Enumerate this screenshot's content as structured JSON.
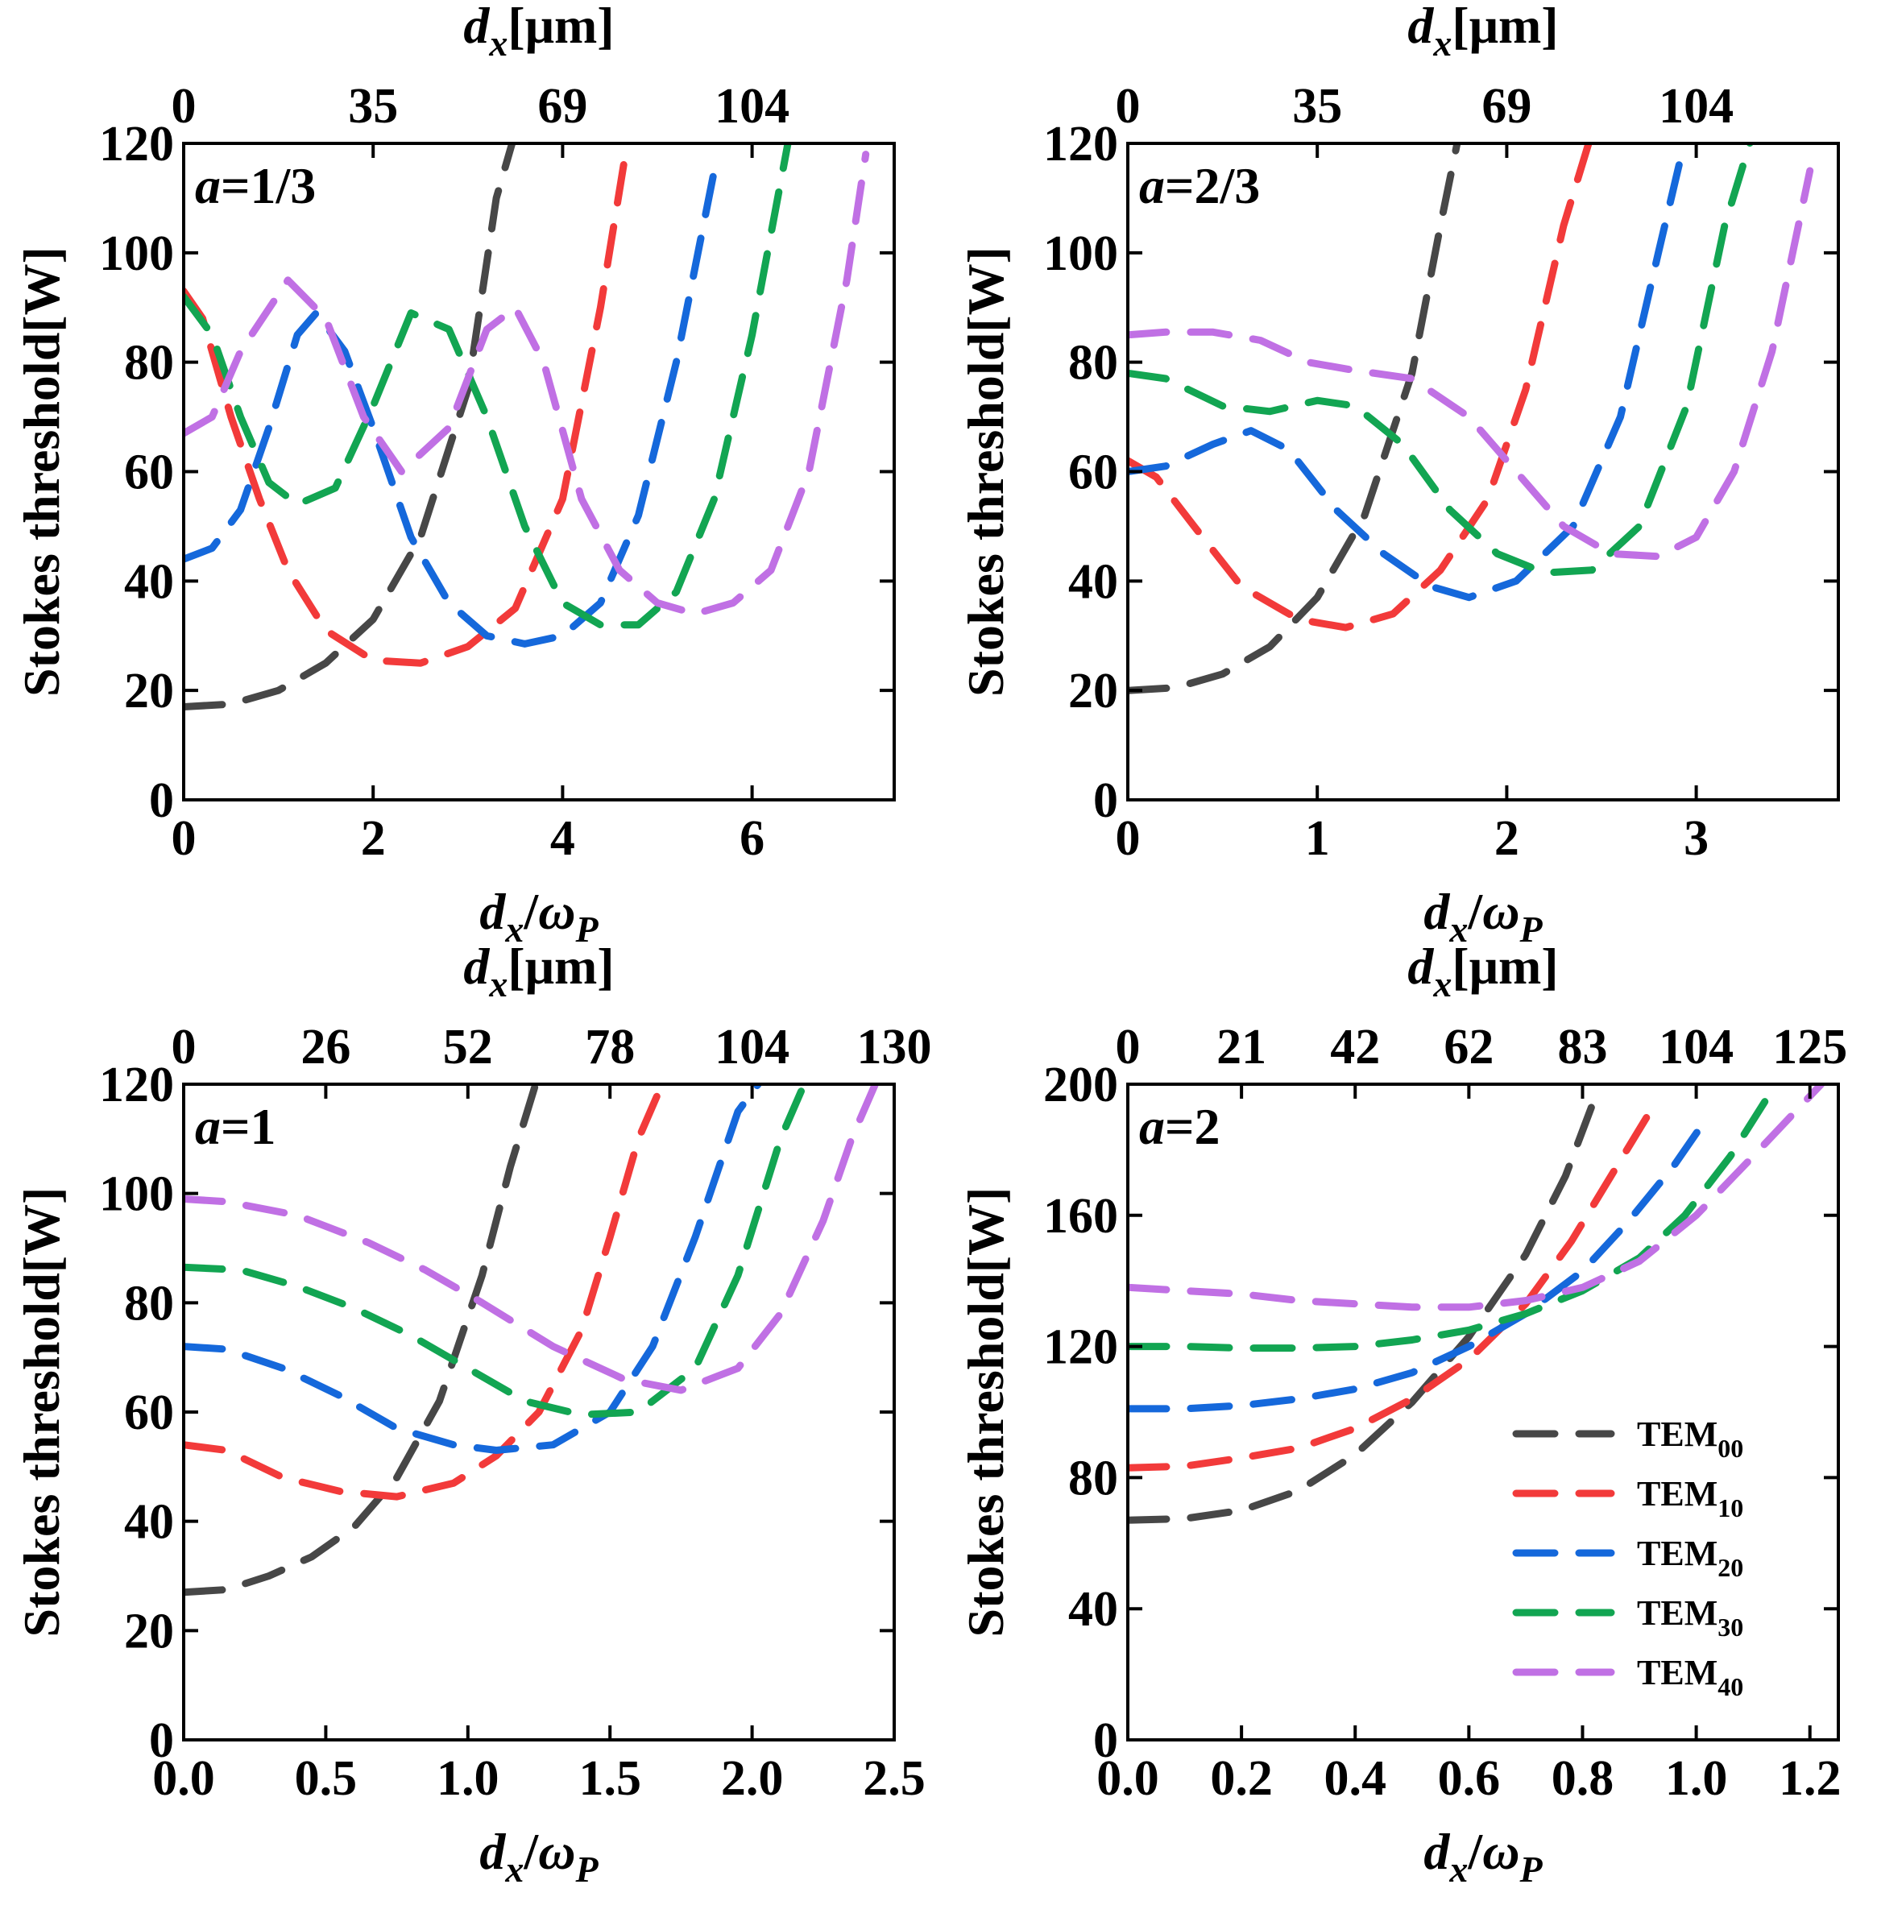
{
  "colors": {
    "TEM00": "#474747",
    "TEM10": "#f23a3a",
    "TEM20": "#1568db",
    "TEM30": "#12a552",
    "TEM40": "#c070e4"
  },
  "legend": {
    "entries": [
      {
        "series": "TEM00",
        "base": "TEM",
        "sub": "00"
      },
      {
        "series": "TEM10",
        "base": "TEM",
        "sub": "10"
      },
      {
        "series": "TEM20",
        "base": "TEM",
        "sub": "20"
      },
      {
        "series": "TEM30",
        "base": "TEM",
        "sub": "30"
      },
      {
        "series": "TEM40",
        "base": "TEM",
        "sub": "40"
      }
    ]
  },
  "chart_data": [
    {
      "type": "line",
      "panel_label": {
        "prefix": "a",
        "value": "=1/3"
      },
      "ylabel": "Stokes threshold[W]",
      "xlabel": {
        "main": "d",
        "sub": "x",
        "slash": "/",
        "omega": "ω",
        "omega_sub": "P"
      },
      "top_xlabel": {
        "main": "d",
        "sub": "x",
        "rest": "[μm]"
      },
      "xlim": [
        0,
        7.5
      ],
      "ylim": [
        0,
        120
      ],
      "xticks": [
        0,
        2,
        4,
        6
      ],
      "xtick_labels": [
        "0",
        "2",
        "4",
        "6"
      ],
      "yticks": [
        0,
        20,
        40,
        60,
        80,
        100,
        120
      ],
      "ytick_labels": [
        "0",
        "20",
        "40",
        "60",
        "80",
        "100",
        "120"
      ],
      "top_ticks": [
        0,
        2,
        4,
        6
      ],
      "top_tick_labels": [
        "0",
        "35",
        "69",
        "104"
      ],
      "series": [
        {
          "key": "TEM00",
          "x": [
            0,
            0.5,
            1.0,
            1.5,
            2.0,
            2.5,
            3.0,
            3.3,
            3.5
          ],
          "y": [
            17,
            17.5,
            20,
            25,
            33,
            48,
            75,
            110,
            122
          ]
        },
        {
          "key": "TEM10",
          "x": [
            0,
            0.2,
            0.5,
            0.8,
            1.1,
            1.5,
            2.0,
            2.5,
            3.0,
            3.5,
            4.0,
            4.4,
            4.7
          ],
          "y": [
            93,
            88,
            70,
            55,
            42,
            31,
            25.5,
            25,
            28,
            35,
            55,
            90,
            122
          ]
        },
        {
          "key": "TEM20",
          "x": [
            0,
            0.3,
            0.6,
            0.9,
            1.2,
            1.4,
            1.7,
            2.0,
            2.4,
            2.8,
            3.2,
            3.6,
            4.0,
            4.4,
            4.8,
            5.2,
            5.6
          ],
          "y": [
            44,
            46,
            53,
            68,
            85,
            89,
            82,
            68,
            48,
            36,
            30,
            28.5,
            30,
            36,
            52,
            80,
            115
          ]
        },
        {
          "key": "TEM30",
          "x": [
            0,
            0.3,
            0.6,
            0.9,
            1.2,
            1.6,
            2.0,
            2.4,
            2.8,
            3.2,
            3.6,
            4.0,
            4.4,
            4.8,
            5.2,
            5.6,
            6.0,
            6.4
          ],
          "y": [
            92,
            85,
            70,
            58,
            54,
            57,
            72,
            89,
            86,
            70,
            50,
            36,
            32,
            32,
            38,
            55,
            85,
            122
          ]
        },
        {
          "key": "TEM40",
          "x": [
            0,
            0.3,
            0.6,
            1.1,
            1.5,
            1.9,
            2.3,
            2.8,
            3.2,
            3.5,
            3.8,
            4.2,
            4.6,
            5.0,
            5.4,
            5.8,
            6.2,
            6.6,
            7.0,
            7.2
          ],
          "y": [
            67,
            70,
            82,
            95,
            88,
            70,
            60,
            68,
            86,
            90,
            80,
            55,
            42,
            36,
            34,
            36,
            42,
            60,
            95,
            118
          ]
        }
      ]
    },
    {
      "type": "line",
      "panel_label": {
        "prefix": "a",
        "value": "=2/3"
      },
      "ylabel": "Stokes threshold[W]",
      "xlabel": {
        "main": "d",
        "sub": "x",
        "slash": "/",
        "omega": "ω",
        "omega_sub": "P"
      },
      "top_xlabel": {
        "main": "d",
        "sub": "x",
        "rest": "[μm]"
      },
      "xlim": [
        0,
        3.75
      ],
      "ylim": [
        0,
        120
      ],
      "xticks": [
        0,
        1,
        2,
        3
      ],
      "xtick_labels": [
        "0",
        "1",
        "2",
        "3"
      ],
      "yticks": [
        0,
        20,
        40,
        60,
        80,
        100,
        120
      ],
      "ytick_labels": [
        "0",
        "20",
        "40",
        "60",
        "80",
        "100",
        "120"
      ],
      "top_ticks": [
        0,
        1,
        2,
        3
      ],
      "top_tick_labels": [
        "0",
        "35",
        "69",
        "104"
      ],
      "series": [
        {
          "key": "TEM00",
          "x": [
            0,
            0.25,
            0.5,
            0.75,
            1.0,
            1.25,
            1.5,
            1.65,
            1.75
          ],
          "y": [
            20,
            20.5,
            23,
            28,
            37,
            52,
            78,
            105,
            122
          ]
        },
        {
          "key": "TEM10",
          "x": [
            0,
            0.15,
            0.35,
            0.6,
            0.9,
            1.15,
            1.4,
            1.65,
            1.9,
            2.1,
            2.3,
            2.45
          ],
          "y": [
            62,
            59,
            50,
            39,
            33,
            31.5,
            34,
            42,
            55,
            75,
            105,
            122
          ]
        },
        {
          "key": "TEM20",
          "x": [
            0,
            0.2,
            0.45,
            0.65,
            0.85,
            1.1,
            1.35,
            1.6,
            1.8,
            2.05,
            2.35,
            2.6,
            2.8,
            2.95
          ],
          "y": [
            60,
            61,
            65,
            67.5,
            64,
            53,
            45,
            39,
            37,
            40,
            50,
            70,
            100,
            122
          ]
        },
        {
          "key": "TEM30",
          "x": [
            0,
            0.2,
            0.5,
            0.75,
            1.0,
            1.2,
            1.45,
            1.7,
            1.95,
            2.2,
            2.45,
            2.7,
            2.95,
            3.15,
            3.3
          ],
          "y": [
            78,
            77,
            72,
            71,
            73,
            72,
            65,
            53,
            45,
            41.5,
            42,
            50,
            72,
            105,
            122
          ]
        },
        {
          "key": "TEM40",
          "x": [
            0,
            0.2,
            0.45,
            0.7,
            0.95,
            1.2,
            1.5,
            1.8,
            2.05,
            2.3,
            2.55,
            2.8,
            3.0,
            3.2,
            3.4,
            3.6
          ],
          "y": [
            85,
            85.5,
            85.5,
            84,
            80,
            78.5,
            77,
            70,
            60,
            50,
            45,
            44.5,
            48,
            60,
            82,
            115
          ]
        }
      ]
    },
    {
      "type": "line",
      "panel_label": {
        "prefix": "a",
        "value": "=1"
      },
      "ylabel": "Stokes threshold[W]",
      "xlabel": {
        "main": "d",
        "sub": "x",
        "slash": "/",
        "omega": "ω",
        "omega_sub": "P"
      },
      "top_xlabel": {
        "main": "d",
        "sub": "x",
        "rest": "[μm]"
      },
      "xlim": [
        0,
        2.5
      ],
      "ylim": [
        0,
        120
      ],
      "xticks": [
        0,
        0.5,
        1.0,
        1.5,
        2.0,
        2.5
      ],
      "xtick_labels": [
        "0.0",
        "0.5",
        "1.0",
        "1.5",
        "2.0",
        "2.5"
      ],
      "yticks": [
        0,
        20,
        40,
        60,
        80,
        100,
        120
      ],
      "ytick_labels": [
        "0",
        "20",
        "40",
        "60",
        "80",
        "100",
        "120"
      ],
      "top_ticks": [
        0,
        0.5,
        1.0,
        1.5,
        2.0,
        2.5
      ],
      "top_tick_labels": [
        "0",
        "26",
        "52",
        "78",
        "104",
        "130"
      ],
      "series": [
        {
          "key": "TEM00",
          "x": [
            0,
            0.15,
            0.3,
            0.45,
            0.6,
            0.75,
            0.9,
            1.05,
            1.15,
            1.25
          ],
          "y": [
            27,
            27.5,
            30,
            33.5,
            39,
            48,
            62,
            85,
            105,
            122
          ]
        },
        {
          "key": "TEM10",
          "x": [
            0,
            0.15,
            0.35,
            0.55,
            0.75,
            0.95,
            1.1,
            1.25,
            1.4,
            1.5,
            1.6,
            1.7
          ],
          "y": [
            54,
            53,
            48,
            45.5,
            44.5,
            47,
            52,
            60,
            75,
            92,
            110,
            122
          ]
        },
        {
          "key": "TEM20",
          "x": [
            0,
            0.15,
            0.35,
            0.55,
            0.75,
            0.95,
            1.1,
            1.3,
            1.5,
            1.65,
            1.8,
            1.95,
            2.05
          ],
          "y": [
            72,
            71.5,
            68,
            63,
            57,
            54,
            53,
            54,
            60,
            72,
            92,
            115,
            122
          ]
        },
        {
          "key": "TEM30",
          "x": [
            0,
            0.2,
            0.4,
            0.6,
            0.8,
            1.0,
            1.2,
            1.4,
            1.6,
            1.8,
            1.95,
            2.1,
            2.2
          ],
          "y": [
            86.5,
            86,
            83,
            79,
            74,
            68,
            62,
            59.5,
            60,
            68,
            85,
            110,
            122
          ]
        },
        {
          "key": "TEM40",
          "x": [
            0,
            0.15,
            0.4,
            0.65,
            0.85,
            1.05,
            1.3,
            1.55,
            1.75,
            1.95,
            2.1,
            2.25,
            2.35,
            2.45
          ],
          "y": [
            99,
            98.5,
            96,
            91,
            86,
            80,
            72,
            66,
            64,
            68,
            78,
            95,
            110,
            122
          ]
        }
      ]
    },
    {
      "type": "line",
      "panel_label": {
        "prefix": "a",
        "value": "=2"
      },
      "ylabel": "Stokes threshold[W]",
      "xlabel": {
        "main": "d",
        "sub": "x",
        "slash": "/",
        "omega": "ω",
        "omega_sub": "P"
      },
      "top_xlabel": {
        "main": "d",
        "sub": "x",
        "rest": "[μm]"
      },
      "xlim": [
        0,
        1.25
      ],
      "ylim": [
        0,
        200
      ],
      "xticks": [
        0,
        0.2,
        0.4,
        0.6,
        0.8,
        1.0,
        1.2
      ],
      "xtick_labels": [
        "0.0",
        "0.2",
        "0.4",
        "0.6",
        "0.8",
        "1.0",
        "1.2"
      ],
      "yticks": [
        0,
        40,
        80,
        120,
        160,
        200
      ],
      "ytick_labels": [
        "0",
        "40",
        "80",
        "120",
        "160",
        "200"
      ],
      "top_ticks": [
        0,
        0.2,
        0.4,
        0.6,
        0.8,
        1.0,
        1.2
      ],
      "top_tick_labels": [
        "0",
        "21",
        "42",
        "62",
        "83",
        "104",
        "125"
      ],
      "series": [
        {
          "key": "TEM00",
          "x": [
            0,
            0.1,
            0.2,
            0.3,
            0.4,
            0.5,
            0.6,
            0.7,
            0.77,
            0.82
          ],
          "y": [
            67,
            67.5,
            70,
            76,
            87,
            103,
            123,
            148,
            172,
            195
          ]
        },
        {
          "key": "TEM10",
          "x": [
            0,
            0.1,
            0.2,
            0.3,
            0.4,
            0.5,
            0.6,
            0.7,
            0.78,
            0.85,
            0.92
          ],
          "y": [
            83,
            83.5,
            86,
            89,
            95,
            104,
            116,
            133,
            152,
            172,
            192
          ]
        },
        {
          "key": "TEM20",
          "x": [
            0,
            0.1,
            0.2,
            0.3,
            0.4,
            0.5,
            0.6,
            0.7,
            0.8,
            0.88,
            0.96,
            1.02
          ],
          "y": [
            101,
            101,
            102,
            104,
            107,
            112,
            120,
            130,
            143,
            158,
            175,
            190
          ]
        },
        {
          "key": "TEM30",
          "x": [
            0,
            0.1,
            0.2,
            0.3,
            0.4,
            0.5,
            0.6,
            0.7,
            0.8,
            0.9,
            0.98,
            1.06,
            1.14
          ],
          "y": [
            120,
            120,
            119.5,
            119.5,
            120,
            122,
            125,
            130,
            137,
            147,
            160,
            178,
            200
          ]
        },
        {
          "key": "TEM40",
          "x": [
            0,
            0.1,
            0.2,
            0.3,
            0.4,
            0.5,
            0.6,
            0.7,
            0.8,
            0.9,
            1.0,
            1.1,
            1.22
          ],
          "y": [
            138,
            137,
            136,
            134,
            133,
            132,
            132,
            134,
            138,
            146,
            160,
            178,
            200
          ]
        }
      ]
    }
  ]
}
